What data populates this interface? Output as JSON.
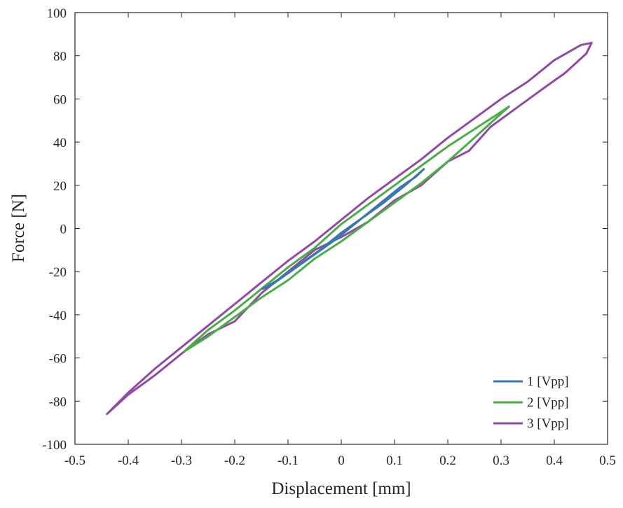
{
  "chart_data": {
    "type": "line",
    "title": "",
    "xlabel": "Displacement [mm]",
    "ylabel": "Force [N]",
    "xlim": [
      -0.5,
      0.5
    ],
    "ylim": [
      -100,
      100
    ],
    "xticks": [
      -0.5,
      -0.4,
      -0.3,
      -0.2,
      -0.1,
      0,
      0.1,
      0.2,
      0.3,
      0.4,
      0.5
    ],
    "xtick_labels": [
      "-0.5",
      "-0.4",
      "-0.3",
      "-0.2",
      "-0.1",
      "0",
      "0.1",
      "0.2",
      "0.3",
      "0.4",
      "0.5"
    ],
    "yticks": [
      -100,
      -80,
      -60,
      -40,
      -20,
      0,
      20,
      40,
      60,
      80,
      100
    ],
    "ytick_labels": [
      "-100",
      "-80",
      "-60",
      "-40",
      "-20",
      "0",
      "20",
      "40",
      "60",
      "80",
      "100"
    ],
    "grid": false,
    "legend_position": "bottom-right",
    "series": [
      {
        "name": "1 [Vpp]",
        "color": "#3a77b0",
        "points": [
          [
            -0.148,
            -28
          ],
          [
            -0.12,
            -24
          ],
          [
            -0.08,
            -17
          ],
          [
            -0.04,
            -10
          ],
          [
            0.0,
            -2
          ],
          [
            0.04,
            5
          ],
          [
            0.08,
            12
          ],
          [
            0.12,
            20
          ],
          [
            0.155,
            27.5
          ],
          [
            0.14,
            24
          ],
          [
            0.11,
            19
          ],
          [
            0.07,
            11
          ],
          [
            0.03,
            3
          ],
          [
            -0.01,
            -5
          ],
          [
            -0.05,
            -12
          ],
          [
            -0.09,
            -19
          ],
          [
            -0.13,
            -26
          ],
          [
            -0.148,
            -28
          ]
        ]
      },
      {
        "name": "2 [Vpp]",
        "color": "#4aad46",
        "points": [
          [
            -0.295,
            -57
          ],
          [
            -0.25,
            -47
          ],
          [
            -0.2,
            -38
          ],
          [
            -0.15,
            -28
          ],
          [
            -0.1,
            -18
          ],
          [
            -0.05,
            -9
          ],
          [
            0.0,
            2
          ],
          [
            0.05,
            11
          ],
          [
            0.1,
            20
          ],
          [
            0.15,
            29
          ],
          [
            0.2,
            38
          ],
          [
            0.25,
            46
          ],
          [
            0.3,
            54
          ],
          [
            0.315,
            56.5
          ],
          [
            0.29,
            51
          ],
          [
            0.25,
            42
          ],
          [
            0.2,
            31
          ],
          [
            0.15,
            21
          ],
          [
            0.1,
            12
          ],
          [
            0.05,
            3
          ],
          [
            0.0,
            -6
          ],
          [
            -0.05,
            -14
          ],
          [
            -0.1,
            -24
          ],
          [
            -0.15,
            -32
          ],
          [
            -0.2,
            -41
          ],
          [
            -0.25,
            -50
          ],
          [
            -0.295,
            -57
          ]
        ]
      },
      {
        "name": "3 [Vpp]",
        "color": "#9249a6",
        "points": [
          [
            -0.44,
            -86
          ],
          [
            -0.4,
            -76
          ],
          [
            -0.35,
            -65
          ],
          [
            -0.3,
            -55
          ],
          [
            -0.25,
            -45
          ],
          [
            -0.2,
            -35
          ],
          [
            -0.15,
            -25
          ],
          [
            -0.1,
            -15
          ],
          [
            -0.05,
            -6
          ],
          [
            0.0,
            4
          ],
          [
            0.05,
            14
          ],
          [
            0.1,
            23
          ],
          [
            0.15,
            32
          ],
          [
            0.2,
            42
          ],
          [
            0.25,
            51
          ],
          [
            0.3,
            60
          ],
          [
            0.35,
            68
          ],
          [
            0.4,
            78
          ],
          [
            0.45,
            85
          ],
          [
            0.47,
            86
          ],
          [
            0.46,
            81
          ],
          [
            0.42,
            72
          ],
          [
            0.38,
            65
          ],
          [
            0.33,
            56
          ],
          [
            0.28,
            47
          ],
          [
            0.24,
            36
          ],
          [
            0.2,
            31
          ],
          [
            0.15,
            20
          ],
          [
            0.1,
            13
          ],
          [
            0.05,
            3
          ],
          [
            0.0,
            -4
          ],
          [
            -0.05,
            -10
          ],
          [
            -0.1,
            -20
          ],
          [
            -0.15,
            -30
          ],
          [
            -0.2,
            -43
          ],
          [
            -0.25,
            -49
          ],
          [
            -0.3,
            -58
          ],
          [
            -0.35,
            -68
          ],
          [
            -0.4,
            -77
          ],
          [
            -0.44,
            -86
          ]
        ]
      }
    ]
  }
}
